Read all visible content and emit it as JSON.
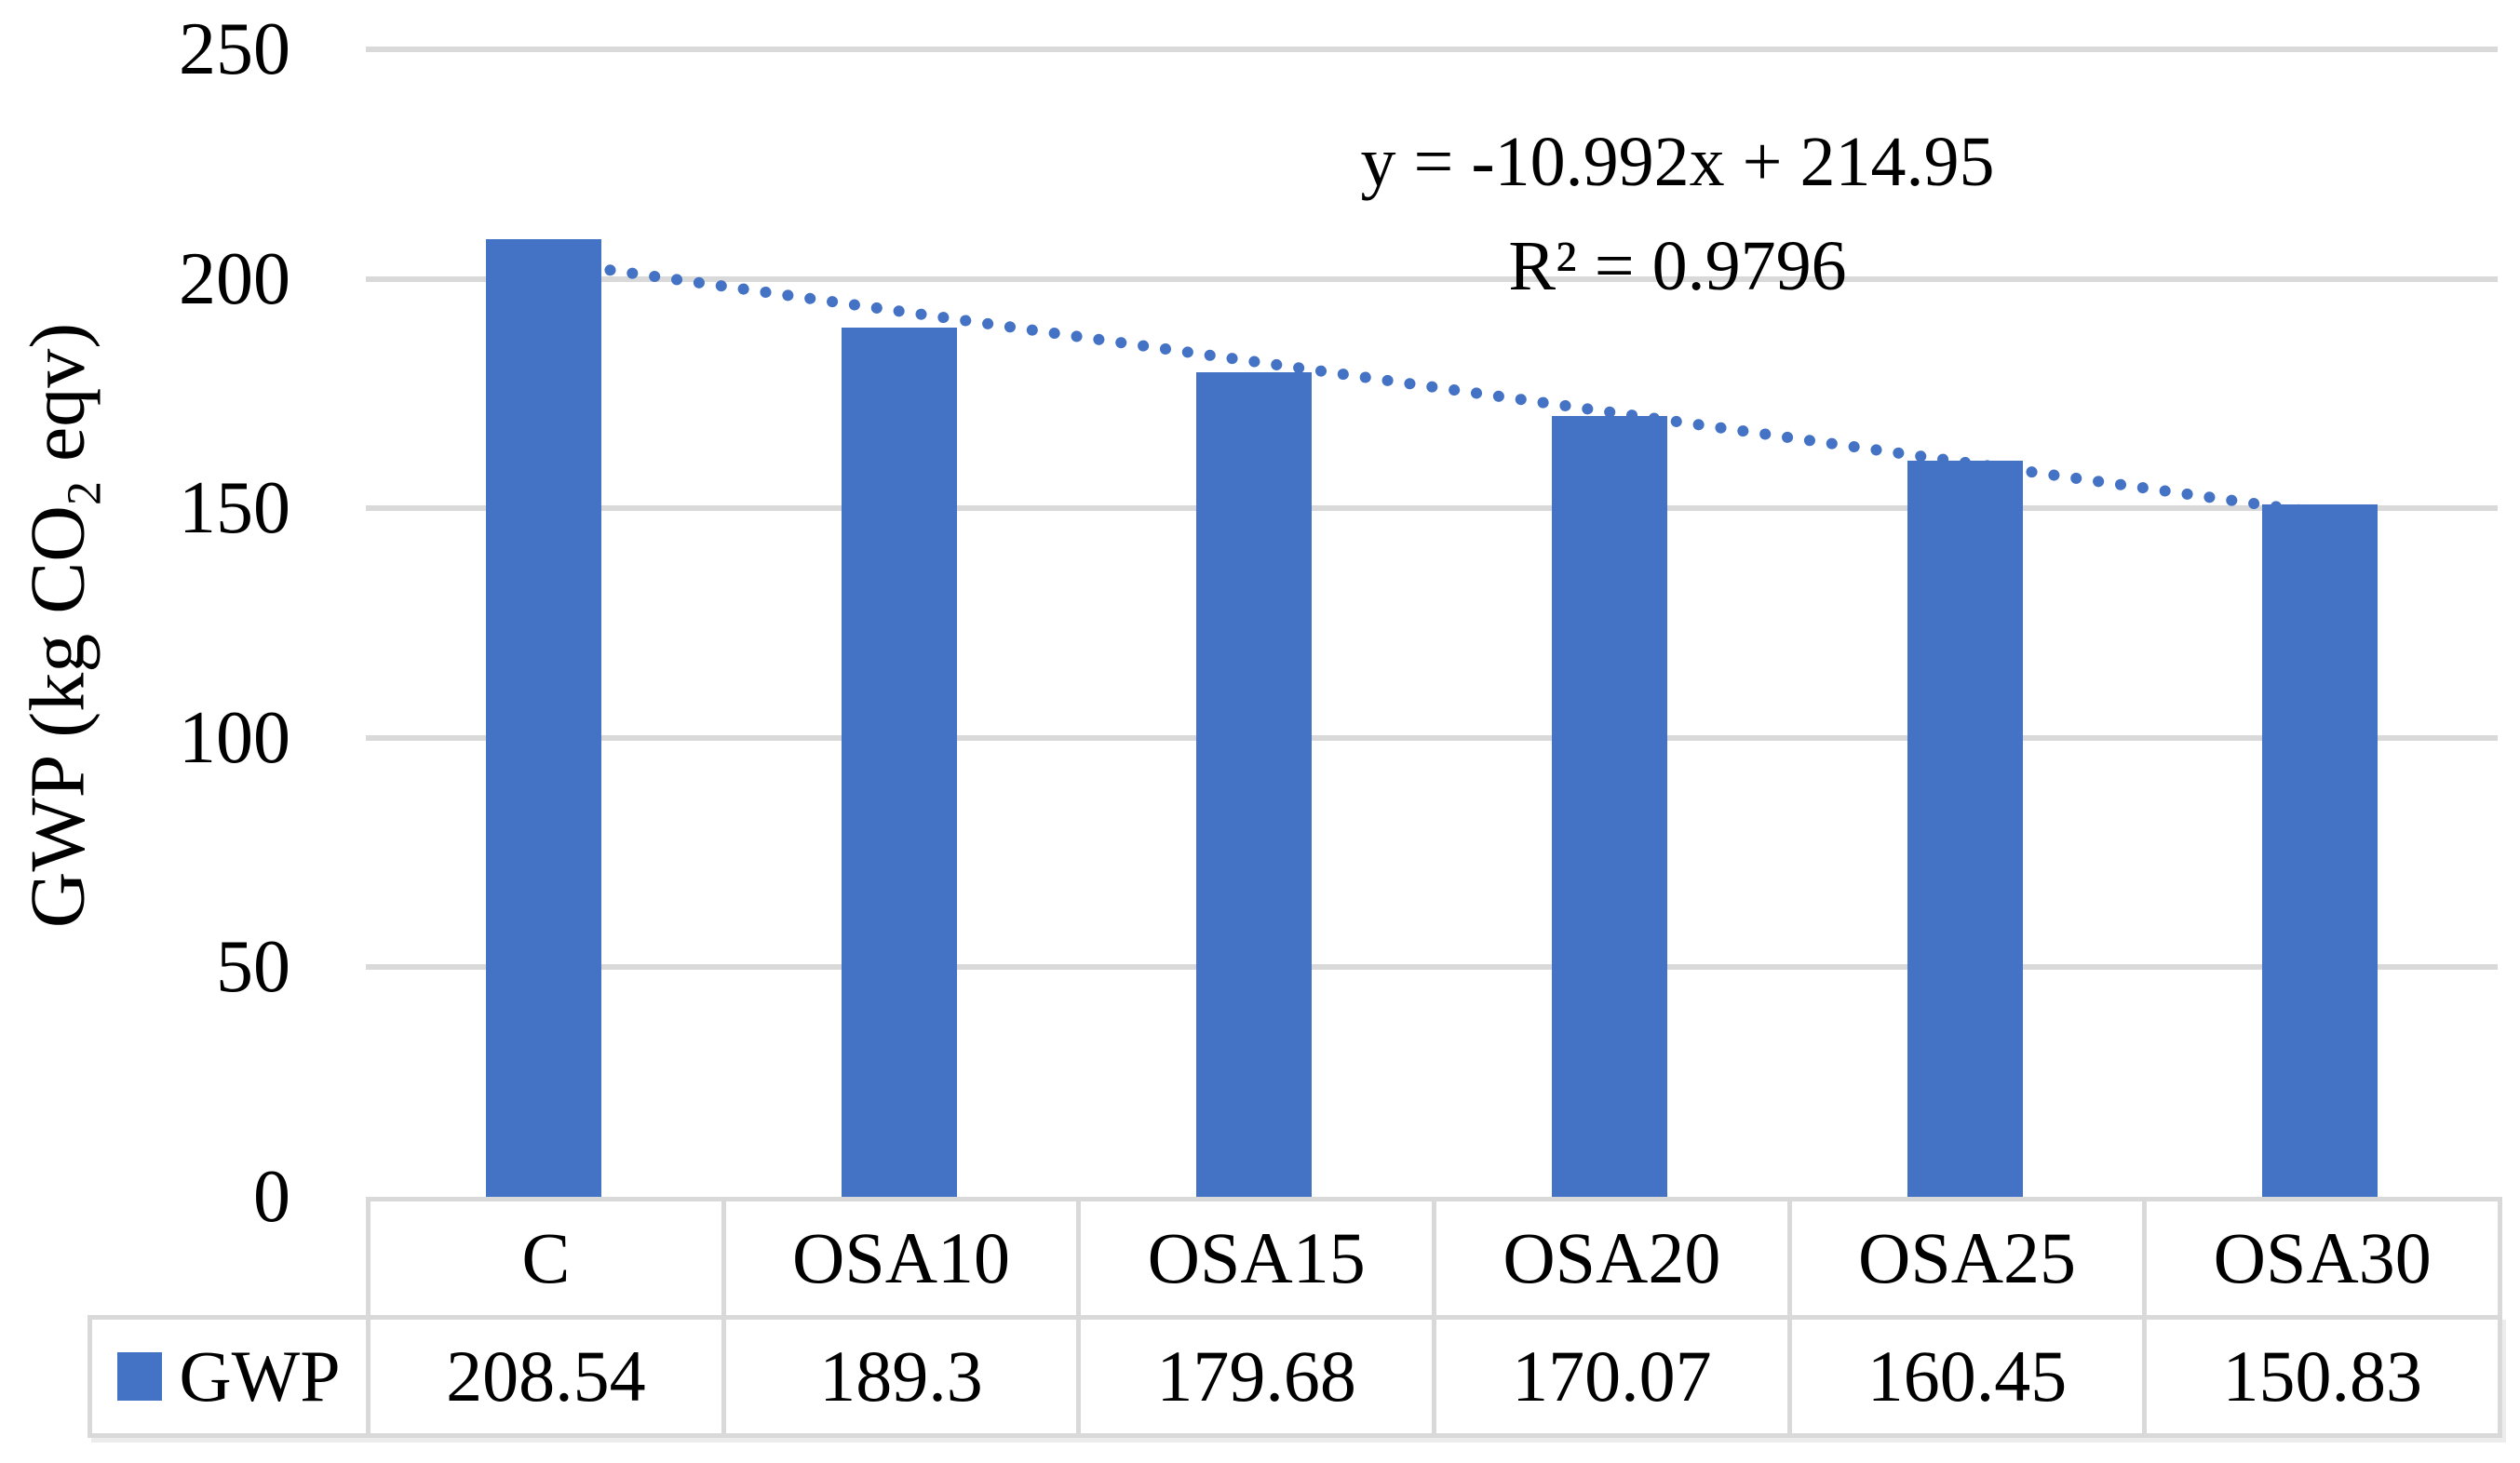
{
  "chart_data": {
    "type": "bar",
    "title": "",
    "xlabel": "",
    "ylabel": "GWP (kg CO2 eqv)",
    "ylabel_parts": {
      "prefix": "GWP (kg CO",
      "sub": "2",
      "suffix": " eqv)"
    },
    "categories": [
      "C",
      "OSA10",
      "OSA15",
      "OSA20",
      "OSA25",
      "OSA30"
    ],
    "series": [
      {
        "name": "GWP",
        "values": [
          208.54,
          189.3,
          179.68,
          170.07,
          160.45,
          150.83
        ]
      }
    ],
    "ylim": [
      0,
      250
    ],
    "yticks": [
      0,
      50,
      100,
      150,
      200,
      250
    ],
    "grid": "horizontal",
    "legend_position": "table-left",
    "bar_color": "#4472C4",
    "gridline_color": "#D9D9D9",
    "trendline": {
      "type": "linear",
      "slope": -10.992,
      "intercept": 214.95,
      "r_squared": 0.9796,
      "equation_label": "y = -10.992x + 214.95",
      "r2_label": "R² = 0.9796",
      "style": "dotted",
      "color": "#4472C4"
    },
    "data_table": {
      "legend_label": "GWP",
      "values_display": [
        "208.54",
        "189.3",
        "179.68",
        "170.07",
        "160.45",
        "150.83"
      ]
    }
  }
}
